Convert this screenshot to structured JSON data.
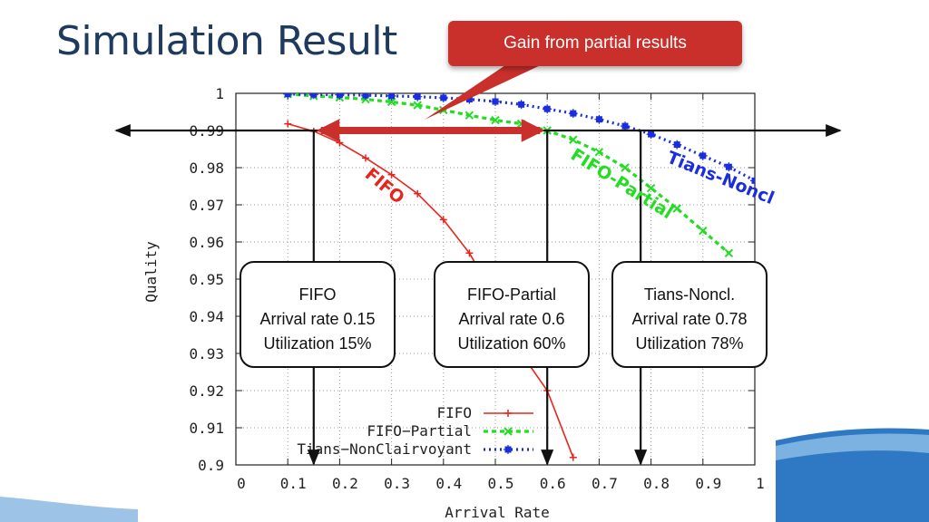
{
  "page": {
    "title": "Simulation Result",
    "callout": "Gain from partial results"
  },
  "colors": {
    "title": "#1f3a5f",
    "callout": "#c9302c",
    "fifo": "#e8251c",
    "fifo_partial": "#22dd22",
    "tians": "#1a2ee0"
  },
  "chart_data": {
    "type": "line",
    "xlabel": "Arrival Rate",
    "ylabel": "Quality",
    "xlim": [
      0,
      1
    ],
    "ylim": [
      0.9,
      1
    ],
    "xticks": [
      "0",
      "0.1",
      "0.2",
      "0.3",
      "0.4",
      "0.5",
      "0.6",
      "0.7",
      "0.8",
      "0.9",
      "1"
    ],
    "yticks": [
      "0.9",
      "0.91",
      "0.92",
      "0.93",
      "0.94",
      "0.95",
      "0.96",
      "0.97",
      "0.98",
      "0.99",
      "1"
    ],
    "grid": true,
    "legend_position": "bottom-left",
    "series": [
      {
        "name": "FIFO",
        "color": "#e8251c",
        "marker": "+",
        "x": [
          0.1,
          0.15,
          0.2,
          0.25,
          0.3,
          0.35,
          0.4,
          0.45,
          0.5,
          0.55,
          0.6,
          0.65
        ],
        "y": [
          0.9918,
          0.9898,
          0.9867,
          0.9826,
          0.9781,
          0.973,
          0.966,
          0.957,
          0.945,
          0.93,
          0.92,
          0.902
        ]
      },
      {
        "name": "FIFO−Partial",
        "color": "#22dd22",
        "marker": "x",
        "x": [
          0.1,
          0.15,
          0.2,
          0.25,
          0.3,
          0.35,
          0.4,
          0.45,
          0.5,
          0.55,
          0.6,
          0.65,
          0.7,
          0.75,
          0.8,
          0.85,
          0.9,
          0.95
        ],
        "y": [
          0.9998,
          0.9993,
          0.9989,
          0.9984,
          0.9977,
          0.9968,
          0.9955,
          0.9941,
          0.9928,
          0.9918,
          0.99,
          0.9875,
          0.9842,
          0.98,
          0.9745,
          0.969,
          0.963,
          0.957
        ]
      },
      {
        "name": "Tians−NonClairvoyant",
        "color": "#1a2ee0",
        "marker": "*",
        "x": [
          0.1,
          0.15,
          0.2,
          0.25,
          0.3,
          0.35,
          0.4,
          0.45,
          0.5,
          0.55,
          0.6,
          0.65,
          0.7,
          0.75,
          0.8,
          0.85,
          0.9,
          0.95,
          1.0
        ],
        "y": [
          0.9998,
          0.9997,
          0.9996,
          0.9995,
          0.9993,
          0.9991,
          0.9988,
          0.9984,
          0.9978,
          0.997,
          0.9958,
          0.9946,
          0.993,
          0.9912,
          0.989,
          0.9862,
          0.9832,
          0.9802,
          0.9765
        ]
      }
    ],
    "annotations": {
      "threshold_y": 0.99,
      "arrival_markers": [
        0.15,
        0.6,
        0.78
      ],
      "gain_arrow_x": [
        0.15,
        0.6
      ],
      "curve_labels": [
        {
          "text": "FIFO",
          "series": 0
        },
        {
          "text": "FIFO-Partial",
          "series": 1
        },
        {
          "text": "Tians-Noncl",
          "series": 2
        }
      ]
    }
  },
  "boxes": [
    {
      "title": "FIFO",
      "rate": "Arrival rate 0.15",
      "util": "Utilization 15%"
    },
    {
      "title": "FIFO-Partial",
      "rate": "Arrival rate 0.6",
      "util": "Utilization 60%"
    },
    {
      "title": "Tians-Noncl.",
      "rate": "Arrival rate 0.78",
      "util": "Utilization 78%"
    }
  ]
}
